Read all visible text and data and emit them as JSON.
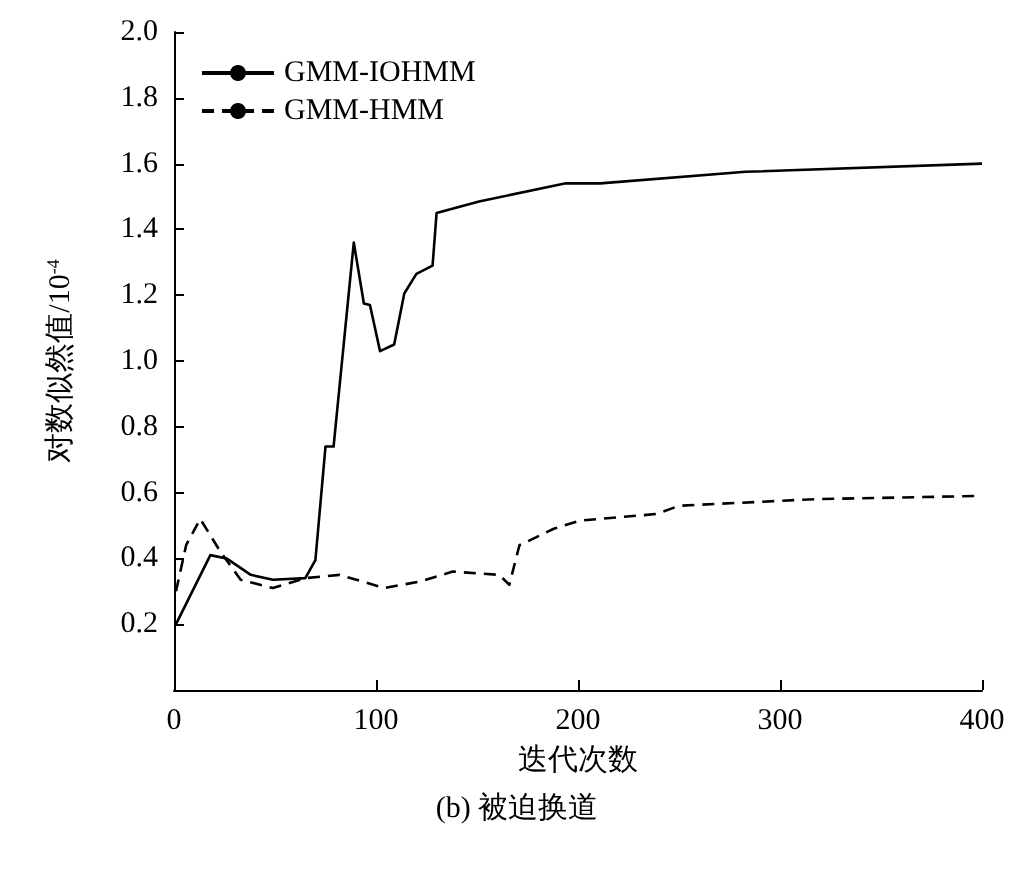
{
  "chart_data": {
    "type": "line",
    "xlabel": "迭代次数",
    "ylabel": "对数似然值/10$^{-4}$",
    "annotations": [
      "(b) 被迫换道"
    ],
    "xlim": [
      0,
      400
    ],
    "xticks": [
      0,
      100,
      200,
      300,
      400
    ],
    "ylim": [
      0,
      2
    ],
    "yticks": [
      {
        "value": 0,
        "label": null
      },
      {
        "value": 0.2,
        "label": "0.2"
      },
      {
        "value": 0.4,
        "label": "0.4"
      },
      {
        "value": 0.6,
        "label": "0.6"
      },
      {
        "value": 0.8,
        "label": "0.8"
      },
      {
        "value": 1.0,
        "label": "1.0"
      },
      {
        "value": 1.2,
        "label": "1.2"
      },
      {
        "value": 1.4,
        "label": "1.4"
      },
      {
        "value": 1.6,
        "label": "1.6"
      },
      {
        "value": 1.8,
        "label": "1.8"
      },
      {
        "value": 2.0,
        "label": "2.0"
      }
    ],
    "grid": false,
    "legend": "top left",
    "marker": "none",
    "series": [
      {
        "name": "GMM-IOHMM",
        "color": "#000000",
        "line_style": "solid",
        "x": [
          1,
          18,
          26,
          38,
          49,
          65,
          70,
          75,
          79,
          89,
          94,
          97,
          102,
          109,
          114,
          120,
          128,
          130,
          151,
          194,
          211,
          283,
          400
        ],
        "values": [
          0.2,
          0.41,
          0.4,
          0.35,
          0.335,
          0.34,
          0.395,
          0.74,
          0.74,
          1.36,
          1.175,
          1.17,
          1.03,
          1.05,
          1.205,
          1.265,
          1.29,
          1.45,
          1.485,
          1.54,
          1.54,
          1.575,
          1.6
        ]
      },
      {
        "name": "GMM-HMM",
        "color": "#000000",
        "line_style": "dashed",
        "x": [
          1,
          6,
          13,
          23,
          33,
          49,
          65,
          82,
          104,
          122,
          138,
          161,
          166,
          171,
          188,
          201,
          239,
          250,
          317,
          400
        ],
        "values": [
          0.3,
          0.44,
          0.52,
          0.42,
          0.335,
          0.31,
          0.34,
          0.35,
          0.31,
          0.33,
          0.36,
          0.35,
          0.32,
          0.44,
          0.49,
          0.515,
          0.535,
          0.56,
          0.58,
          0.59
        ]
      }
    ]
  }
}
